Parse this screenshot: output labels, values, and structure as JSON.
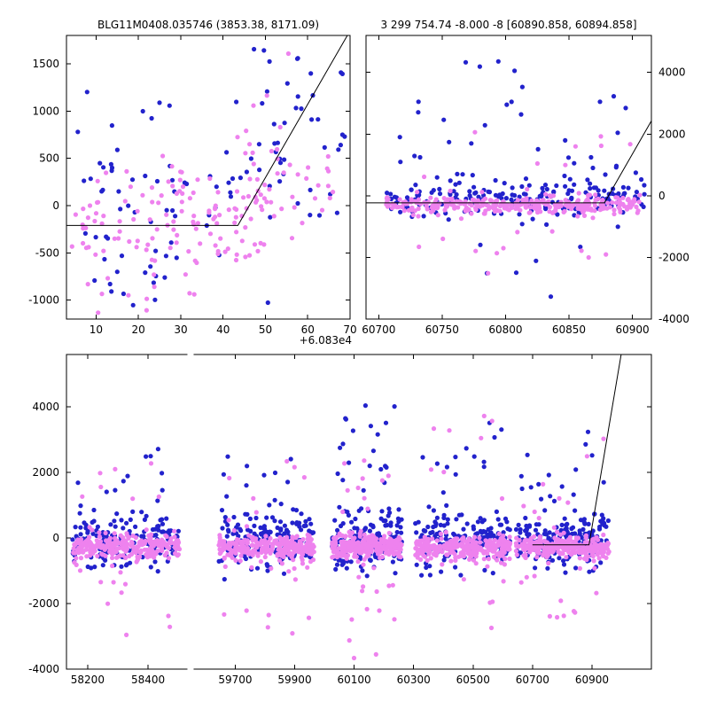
{
  "figure": {
    "background": "#ffffff",
    "blue": "#2222cc",
    "violet": "#ee82ee",
    "line": "#000000"
  },
  "charts": [
    {
      "id": "top_left",
      "type": "scatter",
      "title": "BLG11M0408.035746 (3853.38, 8171.09)",
      "xlim": [
        3,
        70
      ],
      "ylim": [
        -1200,
        1800
      ],
      "x_ticks": [
        10,
        20,
        30,
        40,
        50,
        60,
        70
      ],
      "y_ticks": [
        -1000,
        -500,
        0,
        500,
        1000,
        1500
      ],
      "y_label_side": "left",
      "x_offset_label": "+6.083e4",
      "line": [
        [
          3,
          -210
        ],
        [
          43.5,
          -210
        ],
        [
          70,
          1850
        ]
      ],
      "groups": [
        {
          "color": "blue",
          "n": 85,
          "x": [
            4,
            69
          ],
          "y_mean": 120,
          "y_sd": 520,
          "seed": 13
        },
        {
          "color": "blue",
          "n": 14,
          "x": [
            8,
            32
          ],
          "y_mean": -780,
          "y_sd": 260,
          "seed": 14
        },
        {
          "color": "blue",
          "n": 10,
          "x": [
            50,
            69
          ],
          "y_mean": 1150,
          "y_sd": 330,
          "seed": 15
        },
        {
          "color": "blue",
          "n": 4,
          "x": [
            44,
            64
          ],
          "y_mean": 1650,
          "y_sd": 150,
          "seed": 17
        },
        {
          "color": "violet",
          "n": 120,
          "x": [
            4,
            50
          ],
          "y_mean": -160,
          "y_sd": 300,
          "seed": 11
        },
        {
          "color": "violet",
          "n": 45,
          "x": [
            42,
            66
          ],
          "y_mean": 220,
          "y_sd": 300,
          "seed": 12
        },
        {
          "color": "violet",
          "n": 8,
          "x": [
            5,
            25
          ],
          "y_mean": -950,
          "y_sd": 200,
          "seed": 16
        },
        {
          "color": "violet",
          "n": 3,
          "x": [
            44,
            60
          ],
          "y_mean": 1500,
          "y_sd": 250,
          "seed": 18
        }
      ]
    },
    {
      "id": "top_right",
      "type": "scatter",
      "title": "3 299 754.74 -8.000 -8 [60890.858, 60894.858]",
      "xlim": [
        60690,
        60915
      ],
      "ylim": [
        -4000,
        5200
      ],
      "x_ticks": [
        60700,
        60750,
        60800,
        60850,
        60900
      ],
      "y_ticks": [
        -4000,
        -2000,
        0,
        2000,
        4000
      ],
      "y_label_side": "right",
      "line": [
        [
          60690,
          -230
        ],
        [
          60878,
          -230
        ],
        [
          60916,
          2500
        ]
      ],
      "groups": [
        {
          "color": "blue",
          "n": 200,
          "x": [
            60706,
            60910
          ],
          "y_mean": -60,
          "y_sd": 360,
          "seed": 22
        },
        {
          "color": "blue",
          "n": 26,
          "x": [
            60715,
            60905
          ],
          "y_mean": 1500,
          "y_sd": 1000,
          "seed": 23
        },
        {
          "color": "blue",
          "n": 8,
          "x": [
            60740,
            60900
          ],
          "y_mean": -2100,
          "y_sd": 700,
          "seed": 25
        },
        {
          "color": "blue",
          "n": 4,
          "x": [
            60750,
            60860
          ],
          "y_mean": 4300,
          "y_sd": 250,
          "seed": 27
        },
        {
          "color": "violet",
          "n": 300,
          "x": [
            60706,
            60906
          ],
          "y_mean": -280,
          "y_sd": 150,
          "seed": 21
        },
        {
          "color": "violet",
          "n": 16,
          "x": [
            60715,
            60900
          ],
          "y_mean": -1300,
          "y_sd": 700,
          "seed": 24
        },
        {
          "color": "violet",
          "n": 10,
          "x": [
            60730,
            60900
          ],
          "y_mean": 1200,
          "y_sd": 600,
          "seed": 26
        }
      ]
    },
    {
      "id": "bottom",
      "type": "scatter",
      "title": "",
      "ylim": [
        -4000,
        5600
      ],
      "y_ticks": [
        -4000,
        -2000,
        0,
        2000,
        4000
      ],
      "y_label_side": "left",
      "panels": [
        {
          "xlim": [
            58130,
            58530
          ],
          "frac": 0.209,
          "ticks": [
            58200,
            58400
          ]
        },
        {
          "xlim": [
            59560,
            61100
          ],
          "frac": 0.791,
          "ticks": [
            59700,
            59900,
            60100,
            60300,
            60500,
            60700,
            60900
          ]
        }
      ],
      "line": [
        [
          60700,
          -210
        ],
        [
          60890,
          -210
        ],
        [
          61000,
          5700
        ]
      ],
      "groups": [
        {
          "color": "blue",
          "n": 165,
          "x": [
            58150,
            58505
          ],
          "y_mean": -60,
          "y_sd": 430,
          "seed": 31
        },
        {
          "color": "blue",
          "n": 16,
          "x": [
            58165,
            58490
          ],
          "y_mean": 1500,
          "y_sd": 750,
          "seed": 32
        },
        {
          "color": "violet",
          "n": 270,
          "x": [
            58150,
            58505
          ],
          "y_mean": -280,
          "y_sd": 180,
          "seed": 33
        },
        {
          "color": "violet",
          "n": 12,
          "x": [
            58170,
            58480
          ],
          "y_mean": -1400,
          "y_sd": 750,
          "seed": 34
        },
        {
          "color": "violet",
          "n": 8,
          "x": [
            58180,
            58470
          ],
          "y_mean": 1400,
          "y_sd": 650,
          "seed": 35
        },
        {
          "color": "blue",
          "n": 165,
          "x": [
            59645,
            59965
          ],
          "y_mean": -60,
          "y_sd": 430,
          "seed": 41
        },
        {
          "color": "blue",
          "n": 14,
          "x": [
            59660,
            59950
          ],
          "y_mean": 1500,
          "y_sd": 750,
          "seed": 42
        },
        {
          "color": "violet",
          "n": 275,
          "x": [
            59645,
            59965
          ],
          "y_mean": -280,
          "y_sd": 180,
          "seed": 43
        },
        {
          "color": "violet",
          "n": 12,
          "x": [
            59660,
            59950
          ],
          "y_mean": -1700,
          "y_sd": 850,
          "seed": 44
        },
        {
          "color": "violet",
          "n": 8,
          "x": [
            59670,
            59940
          ],
          "y_mean": 1500,
          "y_sd": 650,
          "seed": 45
        },
        {
          "color": "blue",
          "n": 160,
          "x": [
            60025,
            60265
          ],
          "y_mean": -60,
          "y_sd": 450,
          "seed": 51
        },
        {
          "color": "blue",
          "n": 24,
          "x": [
            60035,
            60255
          ],
          "y_mean": 2400,
          "y_sd": 1200,
          "seed": 52
        },
        {
          "color": "violet",
          "n": 260,
          "x": [
            60025,
            60265
          ],
          "y_mean": -280,
          "y_sd": 180,
          "seed": 53
        },
        {
          "color": "violet",
          "n": 14,
          "x": [
            60035,
            60255
          ],
          "y_mean": -1900,
          "y_sd": 900,
          "seed": 54
        },
        {
          "color": "violet",
          "n": 10,
          "x": [
            60045,
            60245
          ],
          "y_mean": 1700,
          "y_sd": 900,
          "seed": 55
        },
        {
          "color": "blue",
          "n": 170,
          "x": [
            60305,
            60625
          ],
          "y_mean": -60,
          "y_sd": 430,
          "seed": 61
        },
        {
          "color": "blue",
          "n": 16,
          "x": [
            60320,
            60610
          ],
          "y_mean": 2000,
          "y_sd": 1100,
          "seed": 62
        },
        {
          "color": "violet",
          "n": 280,
          "x": [
            60305,
            60625
          ],
          "y_mean": -280,
          "y_sd": 180,
          "seed": 63
        },
        {
          "color": "violet",
          "n": 12,
          "x": [
            60320,
            60610
          ],
          "y_mean": -1500,
          "y_sd": 800,
          "seed": 64
        },
        {
          "color": "violet",
          "n": 8,
          "x": [
            60330,
            60600
          ],
          "y_mean": 2800,
          "y_sd": 900,
          "seed": 65
        },
        {
          "color": "blue",
          "n": 185,
          "x": [
            60645,
            60960
          ],
          "y_mean": -40,
          "y_sd": 420,
          "seed": 71
        },
        {
          "color": "blue",
          "n": 14,
          "x": [
            60660,
            60950
          ],
          "y_mean": 1700,
          "y_sd": 800,
          "seed": 72
        },
        {
          "color": "violet",
          "n": 280,
          "x": [
            60645,
            60960
          ],
          "y_mean": -280,
          "y_sd": 170,
          "seed": 73
        },
        {
          "color": "violet",
          "n": 14,
          "x": [
            60660,
            60950
          ],
          "y_mean": -1800,
          "y_sd": 900,
          "seed": 74
        },
        {
          "color": "violet",
          "n": 8,
          "x": [
            60670,
            60940
          ],
          "y_mean": 1500,
          "y_sd": 700,
          "seed": 75
        }
      ]
    }
  ]
}
